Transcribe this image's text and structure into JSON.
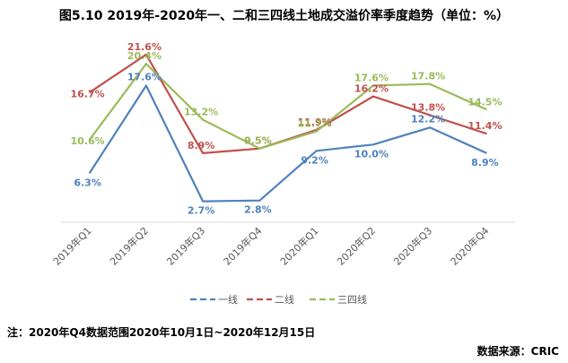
{
  "title": "图5.10 2019年-2020年一、二和三四线土地成交溢价率季度趋势（单位：%）",
  "note": "注：2020年Q4数据范围2020年10月1日~2020年12月15日",
  "source": "数据来源：CRIC",
  "chart_data": {
    "type": "line",
    "categories": [
      "2019年Q1",
      "2019年Q2",
      "2019年Q3",
      "2019年Q4",
      "2020年Q1",
      "2020年Q2",
      "2020年Q3",
      "2020年Q4"
    ],
    "series": [
      {
        "name": "一线",
        "color": "#4f81bd",
        "values": [
          6.3,
          17.6,
          2.7,
          2.8,
          9.2,
          10.0,
          12.2,
          8.9
        ],
        "labels": [
          "6.3%",
          "17.6%",
          "2.7%",
          "2.8%",
          "9.2%",
          "10.0%",
          "12.2%",
          "8.9%"
        ]
      },
      {
        "name": "二线",
        "color": "#c0504d",
        "values": [
          16.7,
          21.6,
          8.9,
          9.5,
          11.9,
          16.2,
          13.8,
          11.4
        ],
        "labels": [
          "16.7%",
          "21.6%",
          "8.9%",
          "9.5%",
          "11.9%",
          "16.2%",
          "13.8%",
          "11.4%"
        ]
      },
      {
        "name": "三四线",
        "color": "#9bbb59",
        "values": [
          10.6,
          20.4,
          13.2,
          9.5,
          11.7,
          17.6,
          17.8,
          14.5
        ],
        "labels": [
          "10.6%",
          "20.4%",
          "13.2%",
          "9.5%",
          "11.7%",
          "17.6%",
          "17.8%",
          "14.5%"
        ]
      }
    ],
    "ylim": [
      0,
      24
    ],
    "grid": false,
    "legend_position": "bottom"
  }
}
